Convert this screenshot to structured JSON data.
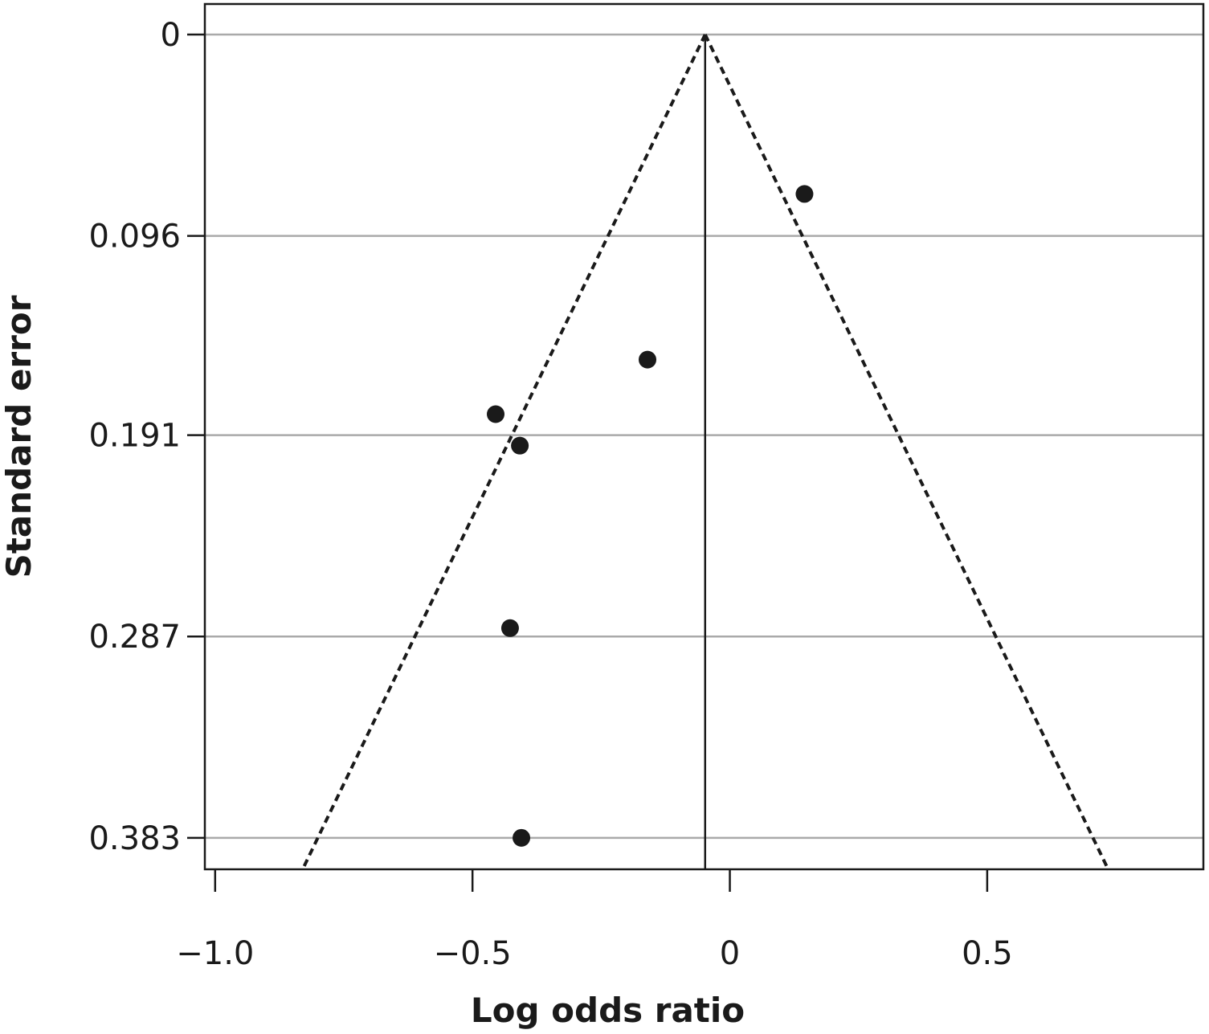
{
  "chart_data": {
    "type": "scatter",
    "title": "",
    "xlabel": "Log odds ratio",
    "ylabel": "Standard error",
    "xlim": [
      -1.02,
      0.92
    ],
    "ylim": [
      0,
      0.398
    ],
    "y_inverted": true,
    "grid": "horizontal",
    "x_ticks": [
      {
        "value": -1.0,
        "label": "−1.0"
      },
      {
        "value": -0.5,
        "label": "−0.5"
      },
      {
        "value": 0,
        "label": "0"
      },
      {
        "value": 0.5,
        "label": "0.5"
      }
    ],
    "y_ticks": [
      {
        "value": 0,
        "label": "0"
      },
      {
        "value": 0.096,
        "label": "0.096"
      },
      {
        "value": 0.191,
        "label": "0.191"
      },
      {
        "value": 0.287,
        "label": "0.287"
      },
      {
        "value": 0.383,
        "label": "0.383"
      }
    ],
    "points": [
      {
        "x": 0.145,
        "y": 0.076
      },
      {
        "x": -0.16,
        "y": 0.155
      },
      {
        "x": -0.455,
        "y": 0.181
      },
      {
        "x": -0.408,
        "y": 0.196
      },
      {
        "x": -0.427,
        "y": 0.283
      },
      {
        "x": -0.405,
        "y": 0.383
      }
    ],
    "summary_estimate": -0.048,
    "funnel_bounds": {
      "apex": {
        "x": -0.048,
        "y": 0
      },
      "left_at_bottom": {
        "x": -0.83,
        "y": 0.398
      },
      "right_at_bottom": {
        "x": 0.735,
        "y": 0.398
      }
    },
    "colors": {
      "points": "#1a1a1a",
      "grid": "#aaaaaa",
      "axis": "#1a1a1a"
    }
  }
}
